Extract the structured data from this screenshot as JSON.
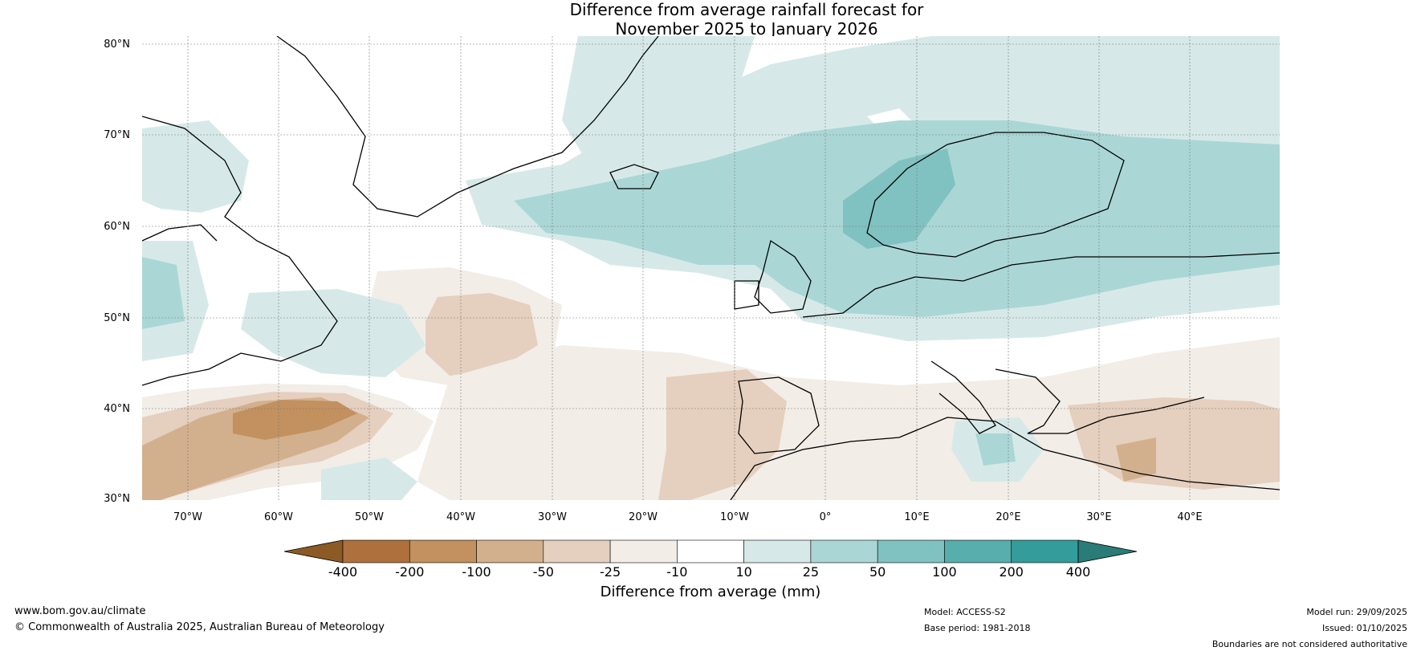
{
  "title": {
    "line1": "Difference from average rainfall forecast for",
    "line2": "November 2025 to January 2026"
  },
  "map": {
    "lat_ticks": [
      "80°N",
      "70°N",
      "60°N",
      "50°N",
      "40°N",
      "30°N"
    ],
    "lon_ticks": [
      "70°W",
      "60°W",
      "50°W",
      "40°W",
      "30°W",
      "20°W",
      "10°W",
      "0°",
      "10°E",
      "20°E",
      "30°E",
      "40°E"
    ],
    "colors": {
      "ocean_neutral": "#ffffff",
      "land_line": "#000000",
      "border_line": "#777777",
      "grid_line": "#777777"
    }
  },
  "colorbar": {
    "label": "Difference from average (mm)",
    "ticks": [
      "-400",
      "-200",
      "-100",
      "-50",
      "-25",
      "-10",
      "10",
      "25",
      "50",
      "100",
      "200",
      "400"
    ],
    "colors": [
      "#8c5a25",
      "#ae703c",
      "#c2915f",
      "#d3b08d",
      "#e5cfbe",
      "#f2ede7",
      "#ffffff",
      "#d6e9e8",
      "#aad7d6",
      "#80c2c1",
      "#58aeac",
      "#349c9a",
      "#2a7c79"
    ]
  },
  "footer": {
    "website": "www.bom.gov.au/climate",
    "copyright": "© Commonwealth of Australia 2025, Australian Bureau of Meteorology",
    "model": "Model: ACCESS-S2",
    "base_period": "Base period: 1981-2018",
    "model_run": "Model run: 29/09/2025",
    "issued": "Issued: 01/10/2025",
    "disclaimer": "Boundaries are not considered authoritative"
  }
}
